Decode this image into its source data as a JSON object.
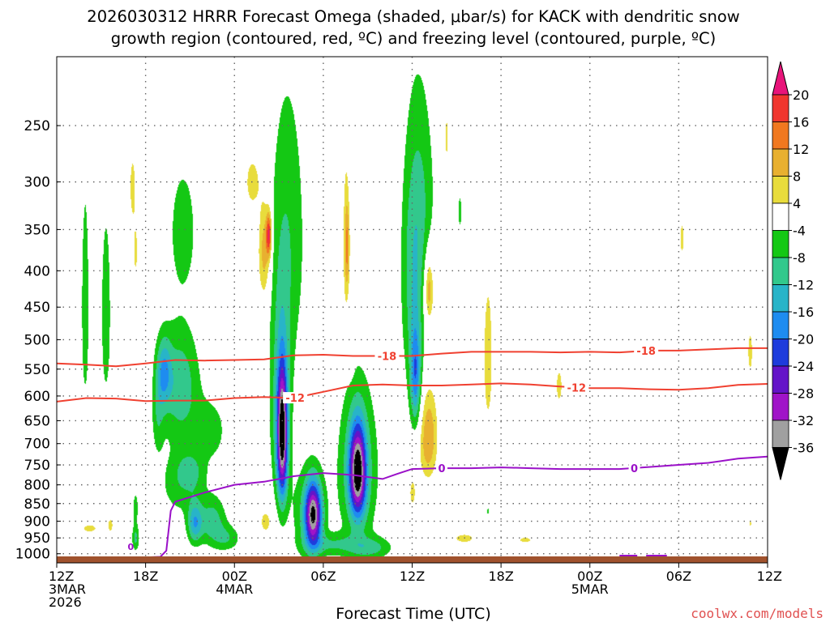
{
  "chart_data": {
    "type": "time-height shaded contour",
    "title_line1": "2026030312 HRRR Forecast Omega (shaded, μbar/s) for KACK with dendritic snow",
    "title_line2": "growth region (contoured, red, ºC) and freezing level (contoured, purple, ºC)",
    "xlabel": "Forecast Time (UTC)",
    "credit": "coolwx.com/models",
    "x_range_hours": [
      0,
      48
    ],
    "pressure_range_hPa": [
      1030,
      200
    ],
    "x_ticks": [
      {
        "h": 0,
        "lines": [
          "12Z",
          "3MAR",
          "2026"
        ]
      },
      {
        "h": 6,
        "lines": [
          "18Z"
        ]
      },
      {
        "h": 12,
        "lines": [
          "00Z",
          "4MAR"
        ]
      },
      {
        "h": 18,
        "lines": [
          "06Z"
        ]
      },
      {
        "h": 24,
        "lines": [
          "12Z"
        ]
      },
      {
        "h": 30,
        "lines": [
          "18Z"
        ]
      },
      {
        "h": 36,
        "lines": [
          "00Z",
          "5MAR"
        ]
      },
      {
        "h": 42,
        "lines": [
          "06Z"
        ]
      },
      {
        "h": 48,
        "lines": [
          "12Z"
        ]
      }
    ],
    "y_ticks": [
      "250",
      "300",
      "350",
      "400",
      "450",
      "500",
      "550",
      "600",
      "650",
      "700",
      "750",
      "800",
      "850",
      "900",
      "950",
      "1000"
    ],
    "colorbar": {
      "labels": [
        "20",
        "16",
        "12",
        "8",
        "4",
        "-4",
        "-8",
        "-12",
        "-16",
        "-20",
        "-24",
        "-28",
        "-32",
        "-36"
      ],
      "bins": [
        {
          "lo": 20,
          "hi": 99,
          "color": "#e8147a"
        },
        {
          "lo": 16,
          "hi": 20,
          "color": "#f0362e"
        },
        {
          "lo": 12,
          "hi": 16,
          "color": "#f07820"
        },
        {
          "lo": 8,
          "hi": 12,
          "color": "#e8b030"
        },
        {
          "lo": 4,
          "hi": 8,
          "color": "#e8dc3c"
        },
        {
          "lo": -4,
          "hi": 4,
          "color": "#ffffff"
        },
        {
          "lo": -8,
          "hi": -4,
          "color": "#14c814"
        },
        {
          "lo": -12,
          "hi": -8,
          "color": "#32c88c"
        },
        {
          "lo": -16,
          "hi": -12,
          "color": "#28b4c8"
        },
        {
          "lo": -20,
          "hi": -16,
          "color": "#1e8cf0"
        },
        {
          "lo": -24,
          "hi": -20,
          "color": "#1e3cdc"
        },
        {
          "lo": -28,
          "hi": -24,
          "color": "#6414c8"
        },
        {
          "lo": -32,
          "hi": -28,
          "color": "#a014c8"
        },
        {
          "lo": -36,
          "hi": -32,
          "color": "#a0a0a0"
        },
        {
          "lo": -99,
          "hi": -36,
          "color": "#000000"
        }
      ]
    },
    "omega_cells": [
      {
        "h": 3.3,
        "p": 460,
        "w": 0.35,
        "hp": 150,
        "peak": -7
      },
      {
        "h": 5.1,
        "p": 305,
        "w": 0.22,
        "hp": 35,
        "peak": 6
      },
      {
        "h": 5.3,
        "p": 375,
        "w": 0.2,
        "hp": 40,
        "peak": 5
      },
      {
        "h": 8.3,
        "p": 580,
        "w": 1.3,
        "hp": 110,
        "peak": -11
      },
      {
        "h": 7.2,
        "p": 555,
        "w": 0.5,
        "hp": 60,
        "peak": -13
      },
      {
        "h": 6.8,
        "p": 640,
        "w": 0.4,
        "hp": 80,
        "peak": -6
      },
      {
        "h": 8.4,
        "p": 800,
        "w": 1.6,
        "hp": 90,
        "peak": -6
      },
      {
        "h": 9.0,
        "p": 765,
        "w": 0.9,
        "hp": 45,
        "peak": -6
      },
      {
        "h": 10.4,
        "p": 670,
        "w": 1.1,
        "hp": 70,
        "peak": -6
      },
      {
        "h": 9.3,
        "p": 905,
        "w": 0.5,
        "hp": 60,
        "peak": -14
      },
      {
        "h": 10.5,
        "p": 900,
        "w": 0.9,
        "hp": 70,
        "peak": -10
      },
      {
        "h": 11.5,
        "p": 950,
        "w": 0.9,
        "hp": 40,
        "peak": -7
      },
      {
        "h": 8.5,
        "p": 350,
        "w": 0.9,
        "hp": 70,
        "peak": -7
      },
      {
        "h": 5.3,
        "p": 950,
        "w": 0.25,
        "hp": 40,
        "peak": -9
      },
      {
        "h": 5.3,
        "p": 860,
        "w": 0.2,
        "hp": 50,
        "peak": -6
      },
      {
        "h": 1.9,
        "p": 450,
        "w": 0.28,
        "hp": 170,
        "peak": -7
      },
      {
        "h": 2.2,
        "p": 920,
        "w": 0.8,
        "hp": 18,
        "peak": 5
      },
      {
        "h": 3.6,
        "p": 910,
        "w": 0.25,
        "hp": 30,
        "peak": 5
      },
      {
        "h": 13.2,
        "p": 300,
        "w": 0.55,
        "hp": 28,
        "peak": 6
      },
      {
        "h": 14.0,
        "p": 375,
        "w": 0.4,
        "hp": 60,
        "peak": 11
      },
      {
        "h": 14.3,
        "p": 355,
        "w": 0.18,
        "hp": 25,
        "peak": 18
      },
      {
        "h": 15.2,
        "p": 680,
        "w": 0.35,
        "hp": 140,
        "peak": -34
      },
      {
        "h": 15.1,
        "p": 620,
        "w": 0.75,
        "hp": 210,
        "peak": -10
      },
      {
        "h": 14.1,
        "p": 900,
        "w": 0.5,
        "hp": 45,
        "peak": 5.5
      },
      {
        "h": 15.6,
        "p": 360,
        "w": 1.25,
        "hp": 170,
        "peak": -7
      },
      {
        "h": 17.3,
        "p": 880,
        "w": 0.55,
        "hp": 90,
        "peak": -31
      },
      {
        "h": 17.0,
        "p": 880,
        "w": 1.1,
        "hp": 140,
        "peak": -8
      },
      {
        "h": 18.6,
        "p": 970,
        "w": 1.8,
        "hp": 35,
        "peak": -7
      },
      {
        "h": 20.3,
        "p": 765,
        "w": 0.55,
        "hp": 110,
        "peak": -33
      },
      {
        "h": 20.3,
        "p": 760,
        "w": 1.4,
        "hp": 210,
        "peak": -10
      },
      {
        "h": 21.3,
        "p": 980,
        "w": 1.4,
        "hp": 35,
        "peak": -8
      },
      {
        "h": 19.5,
        "p": 370,
        "w": 0.22,
        "hp": 110,
        "peak": 6
      },
      {
        "h": 19.6,
        "p": 370,
        "w": 0.15,
        "hp": 50,
        "peak": 9
      },
      {
        "h": 19.8,
        "p": 520,
        "w": 0.25,
        "hp": 40,
        "peak": 4.5
      },
      {
        "h": 24.5,
        "p": 350,
        "w": 1.05,
        "hp": 140,
        "peak": -9
      },
      {
        "h": 24.2,
        "p": 560,
        "w": 0.35,
        "hp": 90,
        "peak": -16
      },
      {
        "h": 24.0,
        "p": 450,
        "w": 0.8,
        "hp": 170,
        "peak": -6
      },
      {
        "h": 25.1,
        "p": 420,
        "w": 0.6,
        "hp": 70,
        "peak": 6
      },
      {
        "h": 25.1,
        "p": 425,
        "w": 0.25,
        "hp": 40,
        "peak": 9
      },
      {
        "h": 25.1,
        "p": 660,
        "w": 0.55,
        "hp": 90,
        "peak": 9
      },
      {
        "h": 25.0,
        "p": 720,
        "w": 0.6,
        "hp": 70,
        "peak": 5
      },
      {
        "h": 24.0,
        "p": 820,
        "w": 0.3,
        "hp": 55,
        "peak": 5
      },
      {
        "h": 26.3,
        "p": 260,
        "w": 0.14,
        "hp": 35,
        "peak": 5
      },
      {
        "h": 27.2,
        "p": 330,
        "w": 0.14,
        "hp": 22,
        "peak": -6
      },
      {
        "h": 29.1,
        "p": 530,
        "w": 0.5,
        "hp": 200,
        "peak": 5
      },
      {
        "h": 29.1,
        "p": 870,
        "w": 0.12,
        "hp": 12,
        "peak": -6
      },
      {
        "h": 27.5,
        "p": 950,
        "w": 1.1,
        "hp": 22,
        "peak": 5
      },
      {
        "h": 31.6,
        "p": 955,
        "w": 0.7,
        "hp": 13,
        "peak": 5
      },
      {
        "h": 33.9,
        "p": 580,
        "w": 0.32,
        "hp": 50,
        "peak": 5
      },
      {
        "h": 42.2,
        "p": 360,
        "w": 0.2,
        "hp": 30,
        "peak": 5
      },
      {
        "h": 46.8,
        "p": 520,
        "w": 0.25,
        "hp": 55,
        "peak": 5
      },
      {
        "h": 46.8,
        "p": 905,
        "w": 0.12,
        "hp": 15,
        "peak": 5
      }
    ],
    "contours": [
      {
        "name": "-18 ºC dendritic growth top",
        "color": "#f04030",
        "label": "-18",
        "label_hours": [
          22.3,
          39.8
        ],
        "points": [
          [
            0,
            540
          ],
          [
            2,
            542
          ],
          [
            4,
            545
          ],
          [
            6,
            540
          ],
          [
            8,
            534
          ],
          [
            10,
            535
          ],
          [
            12,
            534
          ],
          [
            14,
            533
          ],
          [
            16,
            526
          ],
          [
            18,
            525
          ],
          [
            20,
            527
          ],
          [
            22,
            527
          ],
          [
            24,
            527
          ],
          [
            26,
            523
          ],
          [
            28,
            520
          ],
          [
            30,
            520
          ],
          [
            32,
            520
          ],
          [
            34,
            521
          ],
          [
            36,
            520
          ],
          [
            38,
            521
          ],
          [
            40,
            518
          ],
          [
            42,
            518
          ],
          [
            44,
            516
          ],
          [
            46,
            514
          ],
          [
            48,
            514
          ]
        ]
      },
      {
        "name": "-12 ºC dendritic growth bottom",
        "color": "#f04030",
        "label": "-12",
        "label_hours": [
          16.1,
          35.1
        ],
        "points": [
          [
            0,
            611
          ],
          [
            2,
            604
          ],
          [
            4,
            605
          ],
          [
            6,
            610
          ],
          [
            8,
            609
          ],
          [
            10,
            609
          ],
          [
            12,
            604
          ],
          [
            14,
            602
          ],
          [
            16,
            604
          ],
          [
            18,
            592
          ],
          [
            20,
            580
          ],
          [
            22,
            578
          ],
          [
            24,
            580
          ],
          [
            26,
            580
          ],
          [
            28,
            578
          ],
          [
            30,
            576
          ],
          [
            32,
            578
          ],
          [
            34,
            582
          ],
          [
            36,
            585
          ],
          [
            38,
            585
          ],
          [
            40,
            587
          ],
          [
            42,
            588
          ],
          [
            44,
            585
          ],
          [
            46,
            579
          ],
          [
            48,
            577
          ]
        ]
      },
      {
        "name": "0 ºC freezing level",
        "color": "#9a10c8",
        "label": "0",
        "label_hours": [
          26.0,
          39.0
        ],
        "points": [
          [
            2.6,
            1027
          ],
          [
            4,
            1020
          ],
          [
            6,
            1012
          ],
          [
            7,
            1010
          ],
          [
            7.4,
            990
          ],
          [
            7.7,
            870
          ],
          [
            8,
            845
          ],
          [
            10,
            820
          ],
          [
            12,
            800
          ],
          [
            14,
            792
          ],
          [
            16,
            778
          ],
          [
            18,
            770
          ],
          [
            20,
            775
          ],
          [
            22,
            785
          ],
          [
            23,
            772
          ],
          [
            24,
            760
          ],
          [
            26,
            758
          ],
          [
            28,
            758
          ],
          [
            30,
            756
          ],
          [
            32,
            758
          ],
          [
            34,
            760
          ],
          [
            36,
            760
          ],
          [
            38,
            760
          ],
          [
            40,
            755
          ],
          [
            42,
            750
          ],
          [
            44,
            745
          ],
          [
            46,
            735
          ],
          [
            48,
            730
          ]
        ]
      },
      {
        "name": "0 ºC freezing level near surface",
        "color": "#9a10c8",
        "label": "",
        "label_hours": [],
        "points": [
          [
            45.3,
            1013
          ],
          [
            47,
            1018
          ],
          [
            48,
            1020
          ]
        ]
      }
    ],
    "freezing_marker": {
      "h": 5.0,
      "p": 977,
      "label": "0"
    },
    "surface_purple_segments": [
      [
        38.0,
        39.2
      ],
      [
        39.8,
        41.2
      ]
    ]
  }
}
